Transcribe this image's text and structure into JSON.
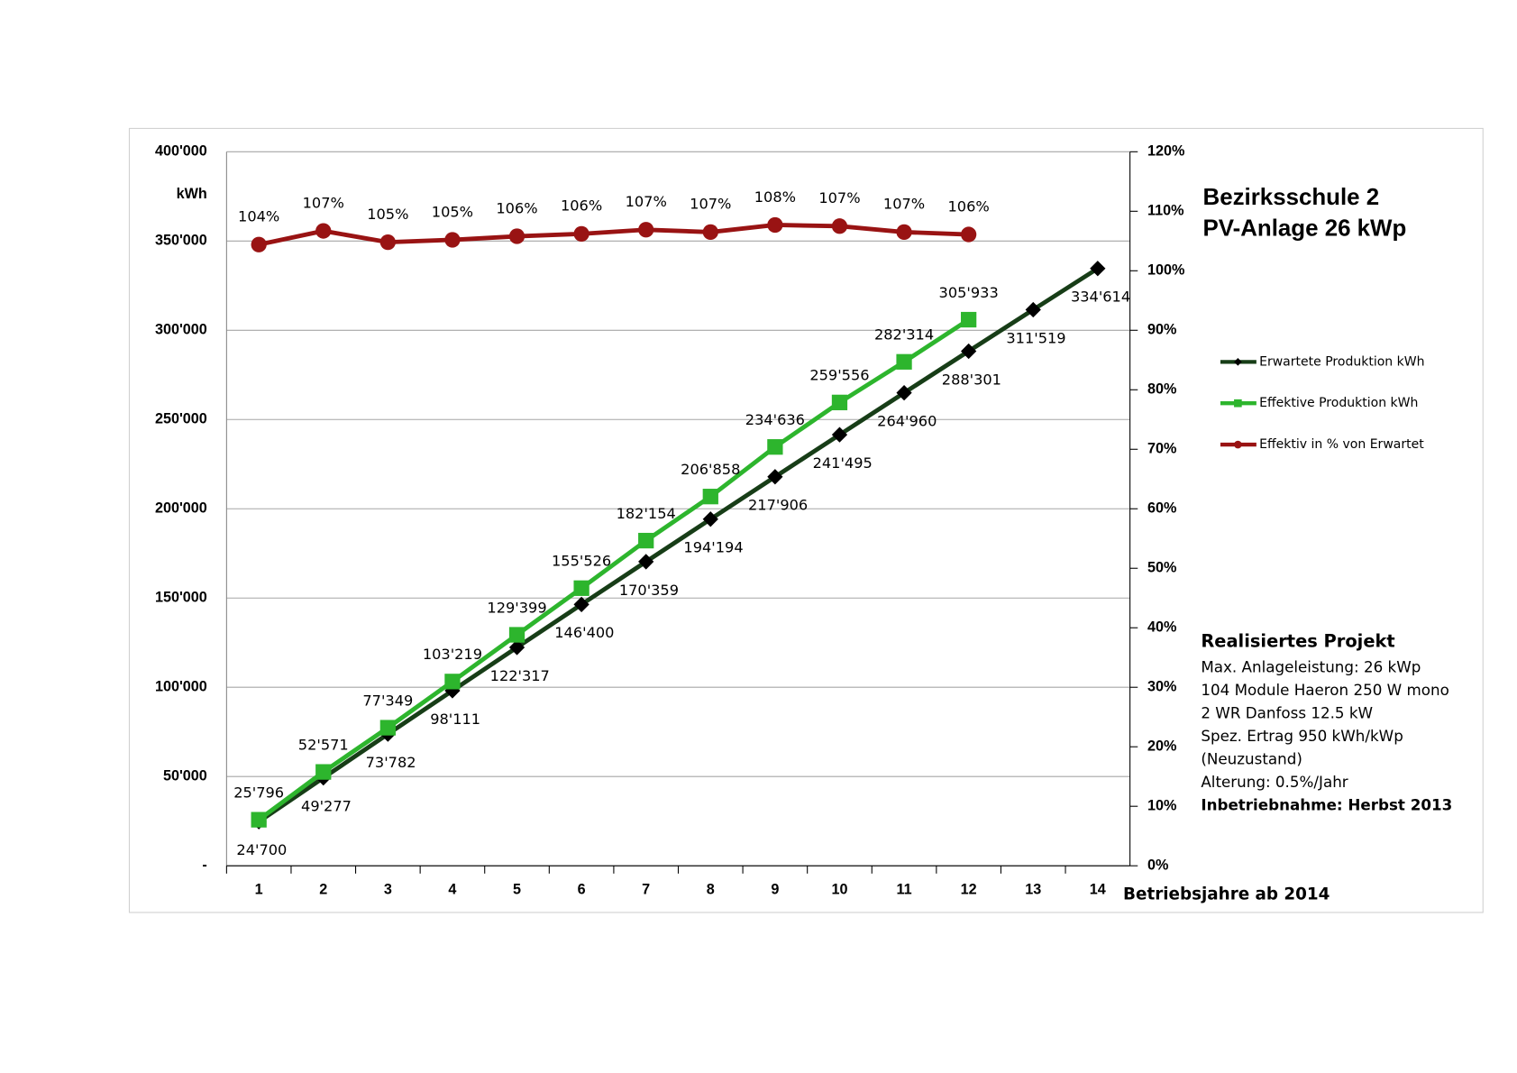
{
  "chart_data": {
    "type": "line",
    "title": [
      "Bezirksschule 2",
      "PV-Anlage 26 kWp"
    ],
    "y_label": "kWh",
    "x_label": "Betriebsjahre ab 2014",
    "categories": [
      1,
      2,
      3,
      4,
      5,
      6,
      7,
      8,
      9,
      10,
      11,
      12,
      13,
      14
    ],
    "series": [
      {
        "name": "Erwartete Produktion kWh",
        "color": "#173d17",
        "marker": "diamond",
        "values": [
          24700,
          49277,
          73782,
          98111,
          122317,
          146400,
          170359,
          194194,
          217906,
          241495,
          264960,
          288301,
          311519,
          334614
        ],
        "value_labels": [
          "24'700",
          "49'277",
          "73'782",
          "98'111",
          "122'317",
          "146'400",
          "170'359",
          "194'194",
          "217'906",
          "241'495",
          "264'960",
          "288'301",
          "311'519",
          "334'614"
        ]
      },
      {
        "name": "Effektive Produktion kWh",
        "color": "#2db52d",
        "marker": "square",
        "values": [
          25796,
          52571,
          77349,
          103219,
          129399,
          155526,
          182154,
          206858,
          234636,
          259556,
          282314,
          305933,
          null,
          null
        ],
        "value_labels": [
          "25'796",
          "52'571",
          "77'349",
          "103'219",
          "129'399",
          "155'526",
          "182'154",
          "206'858",
          "234'636",
          "259'556",
          "282'314",
          "305'933",
          null,
          null
        ]
      },
      {
        "name": "Effektiv in % von Erwartet",
        "color": "#991313",
        "marker": "circle",
        "axis": "y2",
        "values": [
          104.4,
          106.7,
          104.8,
          105.2,
          105.8,
          106.2,
          106.9,
          106.5,
          107.7,
          107.5,
          106.5,
          106.1,
          null,
          null
        ],
        "value_labels": [
          "104%",
          "107%",
          "105%",
          "105%",
          "106%",
          "106%",
          "107%",
          "107%",
          "108%",
          "107%",
          "107%",
          "106%",
          null,
          null
        ]
      }
    ],
    "ylim": [
      0,
      400000
    ],
    "yticks": [
      {
        "value": 0,
        "label": "-"
      },
      {
        "value": 50000,
        "label": "50'000"
      },
      {
        "value": 100000,
        "label": "100'000"
      },
      {
        "value": 150000,
        "label": "150'000"
      },
      {
        "value": 200000,
        "label": "200'000"
      },
      {
        "value": 250000,
        "label": "250'000"
      },
      {
        "value": 300000,
        "label": "300'000"
      },
      {
        "value": 350000,
        "label": "350'000"
      },
      {
        "value": 400000,
        "label": "400'000"
      }
    ],
    "y2lim": [
      0,
      120
    ],
    "y2ticks": [
      {
        "value": 0,
        "label": "0%"
      },
      {
        "value": 10,
        "label": "10%"
      },
      {
        "value": 20,
        "label": "20%"
      },
      {
        "value": 30,
        "label": "30%"
      },
      {
        "value": 40,
        "label": "40%"
      },
      {
        "value": 50,
        "label": "50%"
      },
      {
        "value": 60,
        "label": "60%"
      },
      {
        "value": 70,
        "label": "70%"
      },
      {
        "value": 80,
        "label": "80%"
      },
      {
        "value": 90,
        "label": "90%"
      },
      {
        "value": 100,
        "label": "100%"
      },
      {
        "value": 110,
        "label": "110%"
      },
      {
        "value": 120,
        "label": "120%"
      }
    ],
    "grid": true,
    "legend": "right",
    "project": {
      "heading": "Realisiertes Projekt",
      "lines": [
        "Max. Anlageleistung: 26 kWp",
        "104 Module Haeron 250 W mono",
        "2 WR Danfoss 12.5 kW",
        "Spez. Ertrag 950 kWh/kWp",
        "(Neuzustand)",
        "Alterung: 0.5%/Jahr",
        "Inbetriebnahme: Herbst 2013"
      ]
    }
  }
}
